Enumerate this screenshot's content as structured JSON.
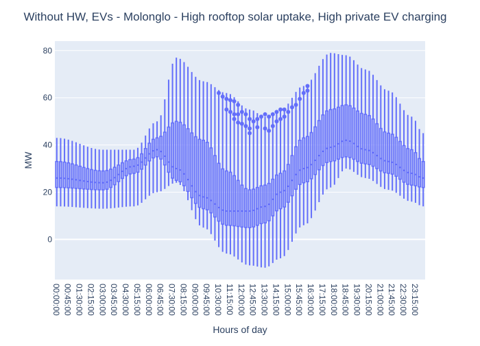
{
  "chart_data": {
    "type": "box",
    "title": "Without HW, EVs - Molonglo - High rooftop solar uptake, High private EV charging",
    "xlabel": "Hours of day",
    "ylabel": "MW",
    "ylim": [
      -17,
      84
    ],
    "y_ticks": [
      0,
      20,
      40,
      60,
      80
    ],
    "x_tick_labels": [
      "00:00:00",
      "00:45:00",
      "01:30:00",
      "02:15:00",
      "03:00:00",
      "03:45:00",
      "04:30:00",
      "05:15:00",
      "06:00:00",
      "06:45:00",
      "07:30:00",
      "08:15:00",
      "09:00:00",
      "09:45:00",
      "10:30:00",
      "11:15:00",
      "12:00:00",
      "12:45:00",
      "13:30:00",
      "14:15:00",
      "15:00:00",
      "15:45:00",
      "16:30:00",
      "17:15:00",
      "18:00:00",
      "18:45:00",
      "19:30:00",
      "20:15:00",
      "21:00:00",
      "21:45:00",
      "22:30:00",
      "23:15:00"
    ],
    "interval_minutes": 15,
    "series_color": "#636efa",
    "plot_bgcolor": "#e5ecf6",
    "grid": true,
    "boxes": {
      "q1_key": [
        22,
        21,
        28,
        35,
        25,
        13,
        6,
        5,
        7,
        13,
        24,
        33,
        35,
        32,
        28,
        23,
        22
      ],
      "median_key": [
        26,
        24,
        31,
        38,
        30,
        18,
        12,
        12,
        14,
        20,
        30,
        39,
        42,
        38,
        33,
        28,
        26
      ],
      "q3_key": [
        33,
        29,
        34,
        43,
        50,
        42,
        29,
        21,
        23,
        28,
        43,
        55,
        57,
        53,
        45,
        38,
        33
      ],
      "min_key": [
        14,
        13,
        14,
        20,
        24,
        5,
        -6,
        -11,
        -12,
        -8,
        6,
        22,
        30,
        26,
        21,
        16,
        14
      ],
      "max_key": [
        43,
        38,
        38,
        50,
        77,
        67,
        62,
        55,
        52,
        55,
        65,
        79,
        78,
        72,
        63,
        52,
        45
      ],
      "key_hours": [
        0,
        3,
        5,
        6.5,
        7.75,
        9.5,
        11,
        12.5,
        13.5,
        14.5,
        16,
        17.75,
        18.75,
        20,
        21.5,
        23,
        23.75
      ]
    },
    "outliers": [
      {
        "x": "10:30:00",
        "y": 62
      },
      {
        "x": "10:45:00",
        "y": 60.5
      },
      {
        "x": "11:00:00",
        "y": 59.5
      },
      {
        "x": "11:15:00",
        "y": 59
      },
      {
        "x": "11:30:00",
        "y": 58.5
      },
      {
        "x": "11:45:00",
        "y": 57
      },
      {
        "x": "11:00:00",
        "y": 55
      },
      {
        "x": "11:15:00",
        "y": 54
      },
      {
        "x": "11:30:00",
        "y": 53
      },
      {
        "x": "11:45:00",
        "y": 53
      },
      {
        "x": "12:00:00",
        "y": 54
      },
      {
        "x": "12:15:00",
        "y": 53
      },
      {
        "x": "11:30:00",
        "y": 51
      },
      {
        "x": "11:45:00",
        "y": 49.5
      },
      {
        "x": "12:00:00",
        "y": 49
      },
      {
        "x": "12:15:00",
        "y": 48
      },
      {
        "x": "12:30:00",
        "y": 47
      },
      {
        "x": "12:30:00",
        "y": 45
      },
      {
        "x": "12:30:00",
        "y": 51
      },
      {
        "x": "12:45:00",
        "y": 50
      },
      {
        "x": "13:00:00",
        "y": 51
      },
      {
        "x": "13:15:00",
        "y": 52
      },
      {
        "x": "13:30:00",
        "y": 53
      },
      {
        "x": "13:45:00",
        "y": 52
      },
      {
        "x": "14:00:00",
        "y": 53
      },
      {
        "x": "14:15:00",
        "y": 54
      },
      {
        "x": "14:30:00",
        "y": 55
      },
      {
        "x": "14:45:00",
        "y": 55
      },
      {
        "x": "13:00:00",
        "y": 47.5
      },
      {
        "x": "13:30:00",
        "y": 47
      },
      {
        "x": "13:45:00",
        "y": 46
      },
      {
        "x": "14:00:00",
        "y": 48
      },
      {
        "x": "14:15:00",
        "y": 50
      },
      {
        "x": "14:30:00",
        "y": 51
      },
      {
        "x": "14:45:00",
        "y": 52
      },
      {
        "x": "15:00:00",
        "y": 54
      },
      {
        "x": "15:15:00",
        "y": 56
      },
      {
        "x": "15:30:00",
        "y": 57
      },
      {
        "x": "15:45:00",
        "y": 59.5
      },
      {
        "x": "16:00:00",
        "y": 62
      },
      {
        "x": "16:15:00",
        "y": 63
      },
      {
        "x": "16:15:00",
        "y": 65
      }
    ]
  }
}
